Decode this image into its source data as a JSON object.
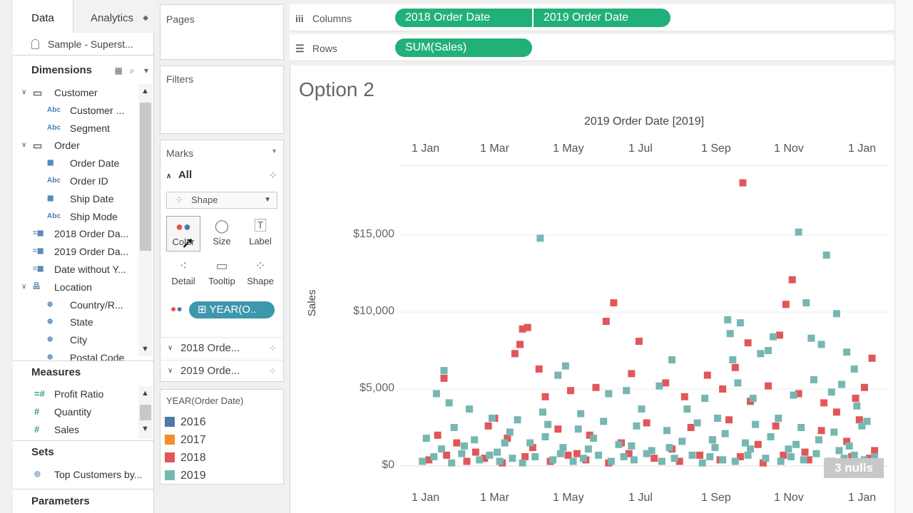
{
  "tabs": {
    "data": "Data",
    "analytics": "Analytics"
  },
  "datasource": "Sample - Superst...",
  "dimensions": {
    "title": "Dimensions",
    "items": [
      {
        "label": "Customer",
        "kind": "folder"
      },
      {
        "label": "Customer ...",
        "kind": "abc"
      },
      {
        "label": "Segment",
        "kind": "abc"
      },
      {
        "label": "Order",
        "kind": "folder"
      },
      {
        "label": "Order Date",
        "kind": "date"
      },
      {
        "label": "Order ID",
        "kind": "abc"
      },
      {
        "label": "Ship Date",
        "kind": "date"
      },
      {
        "label": "Ship Mode",
        "kind": "abc"
      },
      {
        "label": "2018 Order Da...",
        "kind": "calc-date"
      },
      {
        "label": "2019 Order Da...",
        "kind": "calc-date"
      },
      {
        "label": "Date without Y...",
        "kind": "calc-date"
      },
      {
        "label": "Location",
        "kind": "hierarchy"
      },
      {
        "label": "Country/R...",
        "kind": "geo"
      },
      {
        "label": "State",
        "kind": "geo"
      },
      {
        "label": "City",
        "kind": "geo"
      },
      {
        "label": "Postal Code",
        "kind": "geo"
      }
    ]
  },
  "measures": {
    "title": "Measures",
    "items": [
      {
        "label": "Profit Ratio"
      },
      {
        "label": "Quantity"
      },
      {
        "label": "Sales"
      }
    ]
  },
  "sets": {
    "title": "Sets",
    "items": [
      {
        "label": "Top Customers by..."
      }
    ]
  },
  "parameters": {
    "title": "Parameters"
  },
  "cards": {
    "pages": "Pages",
    "filters": "Filters",
    "marks": "Marks",
    "all": "All",
    "mark_type": "Shape",
    "buttons": {
      "color": "Color",
      "size": "Size",
      "label": "Label",
      "detail": "Detail",
      "tooltip": "Tooltip",
      "shape": "Shape"
    },
    "color_pill": "YEAR(O..",
    "sub_marks": [
      "2018 Orde...",
      "2019 Orde..."
    ]
  },
  "legend": {
    "title": "YEAR(Order Date)",
    "items": [
      {
        "label": "2016",
        "color": "#4e79a7"
      },
      {
        "label": "2017",
        "color": "#f28e2b"
      },
      {
        "label": "2018",
        "color": "#e15759"
      },
      {
        "label": "2019",
        "color": "#76b7b2"
      }
    ]
  },
  "shelves": {
    "columns_label": "Columns",
    "columns_pills": [
      "2018 Order Date",
      "2019 Order Date"
    ],
    "rows_label": "Rows",
    "rows_pills": [
      "SUM(Sales)"
    ]
  },
  "view": {
    "title": "Option 2",
    "panel_header": "2019 Order Date [2019]",
    "x_ticks": [
      "1 Jan",
      "1 Mar",
      "1 May",
      "1 Jul",
      "1 Sep",
      "1 Nov",
      "1 Jan"
    ],
    "y_ticks": [
      "$15,000",
      "$10,000",
      "$5,000",
      "$0"
    ],
    "y_label": "Sales",
    "nulls": "3 nulls"
  },
  "chart_data": {
    "type": "scatter",
    "xlabel": "",
    "ylabel": "Sales",
    "x_axis": "2019 Order Date [2019] (day of year)",
    "ylim": [
      0,
      20000
    ],
    "series": [
      {
        "name": "2018",
        "color": "#e15759",
        "points": [
          [
            86,
            9000
          ],
          [
            76,
            7300
          ],
          [
            80,
            7900
          ],
          [
            82,
            8900
          ],
          [
            154,
            10600
          ],
          [
            148,
            9400
          ],
          [
            174,
            8100
          ],
          [
            256,
            18400
          ],
          [
            260,
            8000
          ],
          [
            290,
            10500
          ],
          [
            295,
            12100
          ],
          [
            285,
            8500
          ],
          [
            20,
            5700
          ],
          [
            60,
            3100
          ],
          [
            95,
            6300
          ],
          [
            100,
            4500
          ],
          [
            120,
            4900
          ],
          [
            140,
            5100
          ],
          [
            168,
            6000
          ],
          [
            195,
            5400
          ],
          [
            210,
            4500
          ],
          [
            228,
            5900
          ],
          [
            240,
            5000
          ],
          [
            250,
            6400
          ],
          [
            262,
            4200
          ],
          [
            276,
            5200
          ],
          [
            300,
            4700
          ],
          [
            320,
            4100
          ],
          [
            330,
            3500
          ],
          [
            345,
            4400
          ],
          [
            352,
            5100
          ],
          [
            358,
            7000
          ],
          [
            15,
            2000
          ],
          [
            30,
            1500
          ],
          [
            45,
            900
          ],
          [
            55,
            2600
          ],
          [
            70,
            1800
          ],
          [
            90,
            1200
          ],
          [
            110,
            2400
          ],
          [
            125,
            800
          ],
          [
            135,
            2000
          ],
          [
            160,
            1500
          ],
          [
            180,
            2800
          ],
          [
            200,
            1100
          ],
          [
            215,
            2500
          ],
          [
            232,
            1700
          ],
          [
            245,
            3000
          ],
          [
            268,
            1400
          ],
          [
            282,
            2600
          ],
          [
            305,
            900
          ],
          [
            318,
            2300
          ],
          [
            338,
            1600
          ],
          [
            348,
            3000
          ],
          [
            360,
            1000
          ],
          [
            8,
            400
          ],
          [
            22,
            700
          ],
          [
            38,
            300
          ],
          [
            52,
            500
          ],
          [
            66,
            200
          ],
          [
            84,
            600
          ],
          [
            104,
            300
          ],
          [
            118,
            700
          ],
          [
            132,
            400
          ],
          [
            150,
            200
          ],
          [
            166,
            800
          ],
          [
            186,
            500
          ],
          [
            206,
            300
          ],
          [
            222,
            700
          ],
          [
            238,
            400
          ],
          [
            254,
            600
          ],
          [
            272,
            200
          ],
          [
            288,
            700
          ],
          [
            308,
            400
          ],
          [
            326,
            300
          ],
          [
            342,
            600
          ],
          [
            356,
            500
          ]
        ]
      },
      {
        "name": "2019",
        "color": "#76b7b2",
        "points": [
          [
            96,
            14800
          ],
          [
            300,
            15200
          ],
          [
            322,
            13700
          ],
          [
            306,
            10600
          ],
          [
            330,
            9900
          ],
          [
            244,
            9500
          ],
          [
            246,
            8600
          ],
          [
            248,
            6900
          ],
          [
            254,
            9300
          ],
          [
            270,
            7300
          ],
          [
            276,
            7500
          ],
          [
            280,
            8400
          ],
          [
            310,
            8300
          ],
          [
            318,
            7900
          ],
          [
            338,
            7400
          ],
          [
            344,
            6300
          ],
          [
            20,
            6200
          ],
          [
            14,
            4700
          ],
          [
            24,
            4100
          ],
          [
            40,
            3700
          ],
          [
            58,
            3100
          ],
          [
            78,
            3000
          ],
          [
            98,
            3500
          ],
          [
            110,
            5900
          ],
          [
            116,
            6500
          ],
          [
            128,
            3400
          ],
          [
            150,
            4700
          ],
          [
            164,
            4900
          ],
          [
            176,
            3700
          ],
          [
            190,
            5200
          ],
          [
            200,
            6900
          ],
          [
            212,
            3700
          ],
          [
            226,
            4400
          ],
          [
            236,
            3100
          ],
          [
            252,
            5400
          ],
          [
            264,
            4400
          ],
          [
            284,
            3100
          ],
          [
            296,
            4600
          ],
          [
            312,
            5600
          ],
          [
            326,
            4800
          ],
          [
            334,
            5300
          ],
          [
            346,
            3900
          ],
          [
            354,
            2900
          ],
          [
            6,
            1800
          ],
          [
            18,
            1100
          ],
          [
            28,
            2500
          ],
          [
            44,
            1700
          ],
          [
            62,
            900
          ],
          [
            72,
            2200
          ],
          [
            88,
            1500
          ],
          [
            102,
            2700
          ],
          [
            114,
            1200
          ],
          [
            126,
            2400
          ],
          [
            138,
            1800
          ],
          [
            146,
            2900
          ],
          [
            158,
            1400
          ],
          [
            172,
            2600
          ],
          [
            184,
            1000
          ],
          [
            196,
            2300
          ],
          [
            208,
            1600
          ],
          [
            220,
            2800
          ],
          [
            234,
            1200
          ],
          [
            242,
            2100
          ],
          [
            258,
            1500
          ],
          [
            266,
            2700
          ],
          [
            278,
            1900
          ],
          [
            292,
            1100
          ],
          [
            302,
            2500
          ],
          [
            316,
            1700
          ],
          [
            328,
            2200
          ],
          [
            340,
            1300
          ],
          [
            350,
            2600
          ],
          [
            3,
            300
          ],
          [
            12,
            600
          ],
          [
            26,
            200
          ],
          [
            34,
            800
          ],
          [
            48,
            400
          ],
          [
            56,
            700
          ],
          [
            64,
            300
          ],
          [
            74,
            500
          ],
          [
            82,
            200
          ],
          [
            92,
            600
          ],
          [
            106,
            400
          ],
          [
            112,
            800
          ],
          [
            122,
            300
          ],
          [
            130,
            500
          ],
          [
            142,
            700
          ],
          [
            152,
            300
          ],
          [
            162,
            600
          ],
          [
            170,
            400
          ],
          [
            180,
            800
          ],
          [
            192,
            300
          ],
          [
            202,
            500
          ],
          [
            216,
            700
          ],
          [
            224,
            200
          ],
          [
            230,
            600
          ],
          [
            240,
            400
          ],
          [
            250,
            300
          ],
          [
            260,
            700
          ],
          [
            274,
            500
          ],
          [
            286,
            300
          ],
          [
            294,
            600
          ],
          [
            304,
            400
          ],
          [
            314,
            800
          ],
          [
            324,
            300
          ],
          [
            336,
            500
          ],
          [
            344,
            700
          ],
          [
            352,
            400
          ],
          [
            360,
            600
          ],
          [
            36,
            1300
          ],
          [
            68,
            1500
          ],
          [
            100,
            1900
          ],
          [
            134,
            1100
          ],
          [
            168,
            1300
          ],
          [
            198,
            1200
          ],
          [
            232,
            1700
          ],
          [
            262,
            1100
          ],
          [
            298,
            1400
          ],
          [
            332,
            1000
          ]
        ]
      }
    ]
  }
}
